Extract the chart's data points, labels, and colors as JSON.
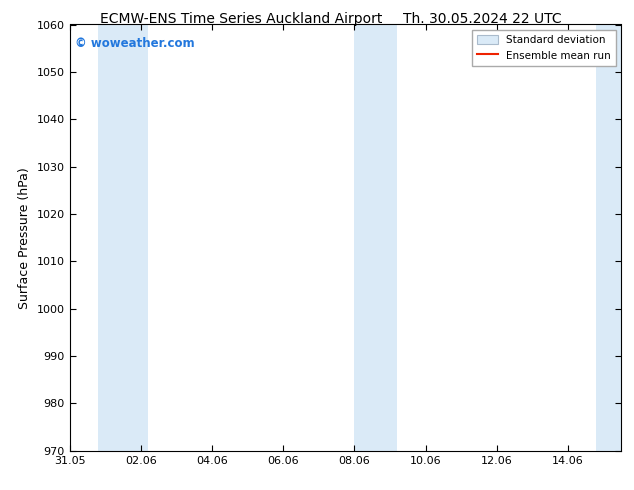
{
  "title_left": "ECMW-ENS Time Series Auckland Airport",
  "title_right": "Th. 30.05.2024 22 UTC",
  "ylabel": "Surface Pressure (hPa)",
  "ylim": [
    970,
    1060
  ],
  "yticks": [
    970,
    980,
    990,
    1000,
    1010,
    1020,
    1030,
    1040,
    1050,
    1060
  ],
  "xlim_start": 0,
  "xlim_end": 15.5,
  "xtick_labels": [
    "31.05",
    "02.06",
    "04.06",
    "06.06",
    "08.06",
    "10.06",
    "12.06",
    "14.06"
  ],
  "xtick_positions": [
    0,
    2,
    4,
    6,
    8,
    10,
    12,
    14
  ],
  "shaded_bands": [
    {
      "x_start": 0.8,
      "x_end": 2.2
    },
    {
      "x_start": 8.0,
      "x_end": 9.2
    },
    {
      "x_start": 14.8,
      "x_end": 15.5
    }
  ],
  "band_color": "#daeaf7",
  "watermark_text": "© woweather.com",
  "watermark_color": "#2277dd",
  "legend_std_color": "#daeaf7",
  "legend_std_edge": "#aabbcc",
  "legend_mean_color": "#ee2200",
  "bg_color": "#ffffff",
  "spine_color": "#000000",
  "title_fontsize": 10,
  "tick_fontsize": 8,
  "ylabel_fontsize": 9,
  "legend_fontsize": 7.5
}
